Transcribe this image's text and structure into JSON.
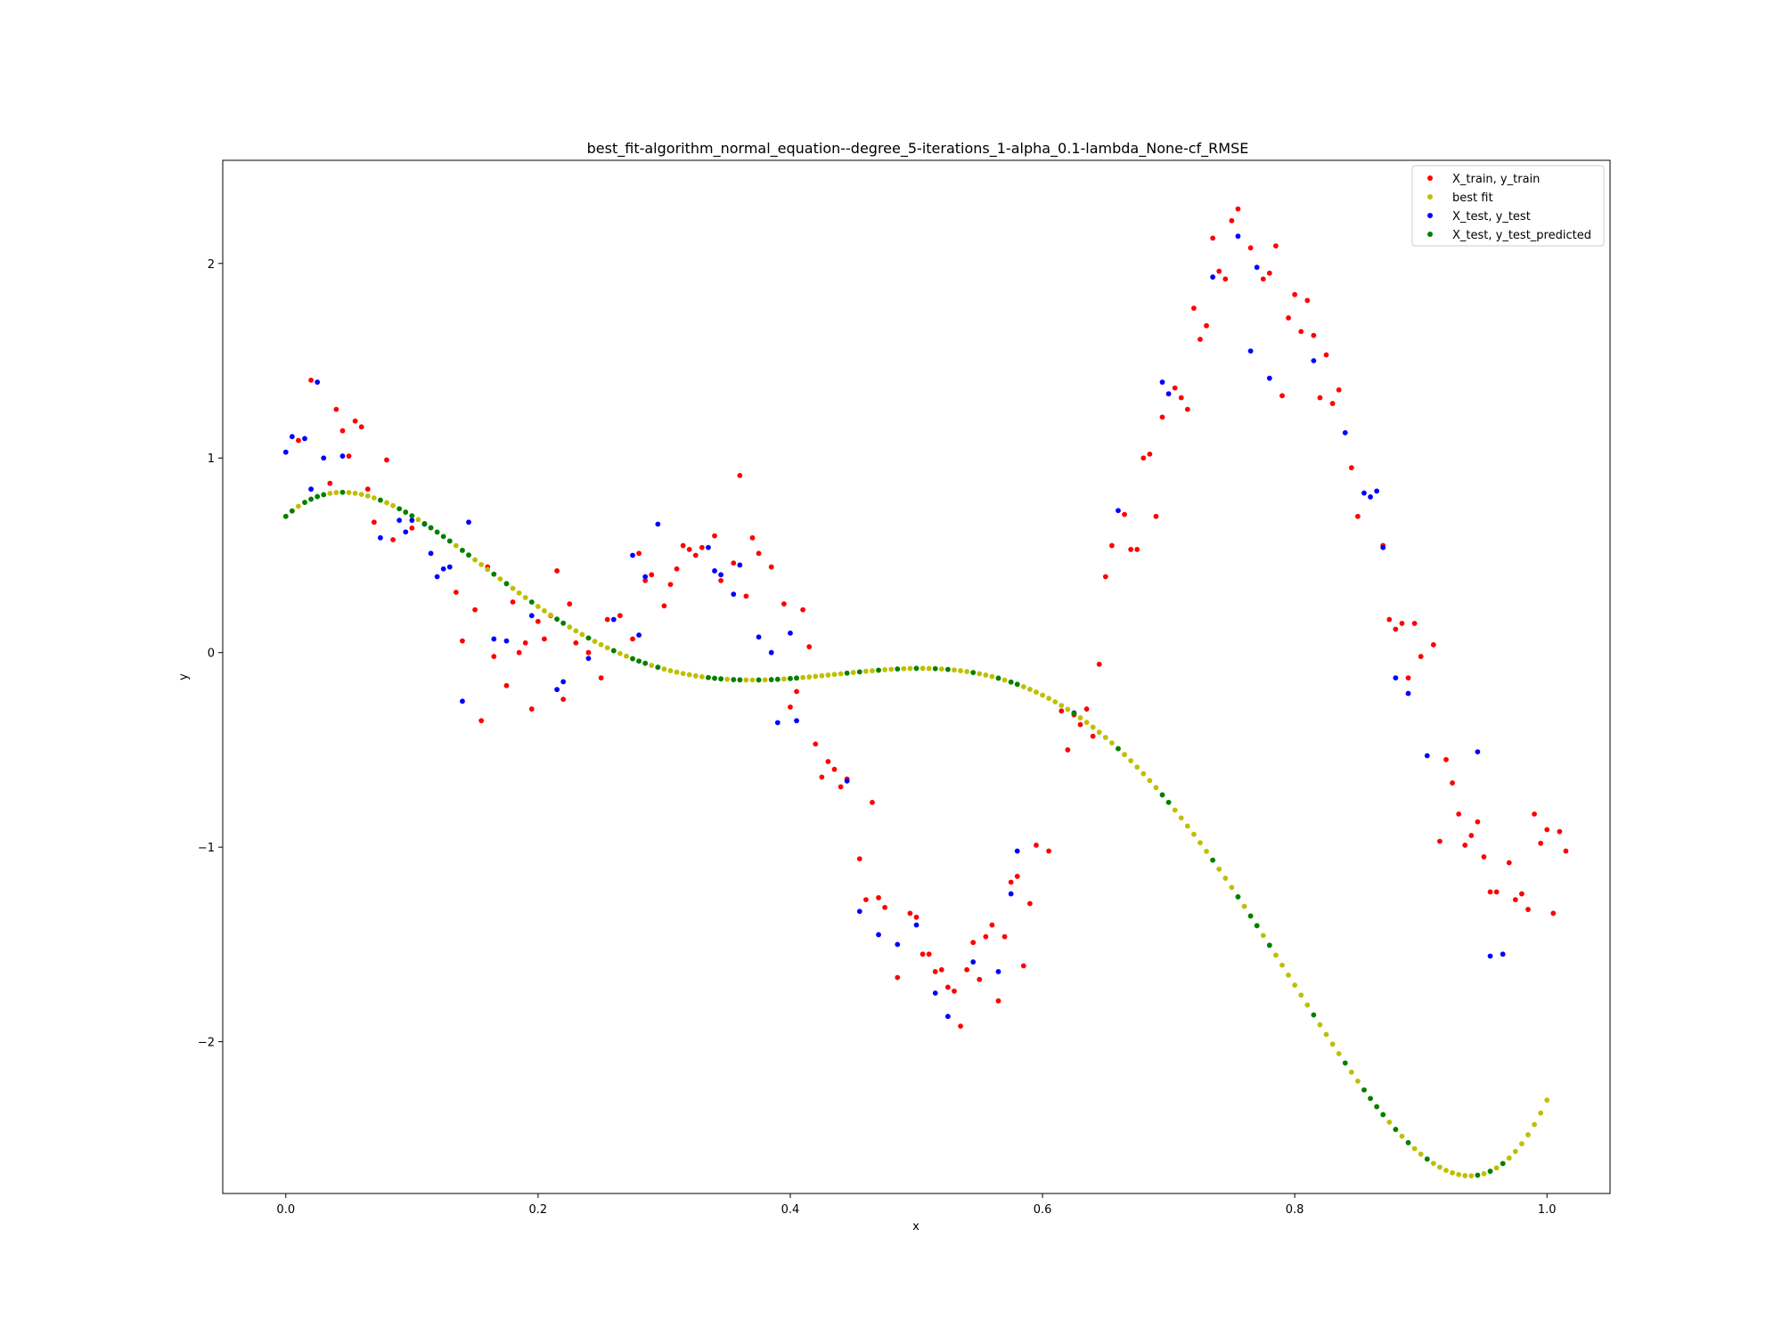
{
  "chart_data": {
    "type": "scatter",
    "title": "best_fit-algorithm_normal_equation--degree_5-iterations_1-alpha_0.1-lambda_None-cf_RMSE",
    "xlabel": "x",
    "ylabel": "y",
    "xlim": [
      -0.05,
      1.05
    ],
    "ylim": [
      -2.78,
      2.53
    ],
    "xticks": [
      0.0,
      0.2,
      0.4,
      0.6,
      0.8,
      1.0
    ],
    "xtick_labels": [
      "0.0",
      "0.2",
      "0.4",
      "0.6",
      "0.8",
      "1.0"
    ],
    "yticks": [
      -2,
      -1,
      0,
      1,
      2
    ],
    "ytick_labels": [
      "−2",
      "−1",
      "0",
      "1",
      "2"
    ],
    "grid": false,
    "legend_position": "top-right",
    "best_fit": {
      "degree": 5,
      "coefficients": [
        0.7,
        6.0,
        -84.0,
        277.0,
        -355.0,
        153.0
      ]
    },
    "series": [
      {
        "name": "X_train, y_train",
        "color": "#ff0000",
        "points": [
          [
            0.01,
            1.09
          ],
          [
            0.02,
            1.4
          ],
          [
            0.035,
            0.87
          ],
          [
            0.04,
            1.25
          ],
          [
            0.045,
            1.14
          ],
          [
            0.05,
            1.01
          ],
          [
            0.055,
            1.19
          ],
          [
            0.06,
            1.16
          ],
          [
            0.065,
            0.84
          ],
          [
            0.07,
            0.67
          ],
          [
            0.08,
            0.99
          ],
          [
            0.085,
            0.58
          ],
          [
            0.1,
            0.64
          ],
          [
            0.135,
            0.31
          ],
          [
            0.14,
            0.06
          ],
          [
            0.15,
            0.22
          ],
          [
            0.155,
            -0.35
          ],
          [
            0.16,
            0.44
          ],
          [
            0.165,
            -0.02
          ],
          [
            0.175,
            -0.17
          ],
          [
            0.18,
            0.26
          ],
          [
            0.185,
            0.0
          ],
          [
            0.19,
            0.05
          ],
          [
            0.195,
            -0.29
          ],
          [
            0.2,
            0.16
          ],
          [
            0.205,
            0.07
          ],
          [
            0.21,
            0.19
          ],
          [
            0.215,
            0.42
          ],
          [
            0.22,
            -0.24
          ],
          [
            0.225,
            0.25
          ],
          [
            0.23,
            0.05
          ],
          [
            0.24,
            0.0
          ],
          [
            0.25,
            -0.13
          ],
          [
            0.255,
            0.17
          ],
          [
            0.265,
            0.19
          ],
          [
            0.275,
            0.07
          ],
          [
            0.28,
            0.51
          ],
          [
            0.285,
            0.37
          ],
          [
            0.29,
            0.4
          ],
          [
            0.3,
            0.24
          ],
          [
            0.305,
            0.35
          ],
          [
            0.31,
            0.43
          ],
          [
            0.315,
            0.55
          ],
          [
            0.32,
            0.53
          ],
          [
            0.325,
            0.5
          ],
          [
            0.33,
            0.54
          ],
          [
            0.34,
            0.6
          ],
          [
            0.345,
            0.37
          ],
          [
            0.355,
            0.46
          ],
          [
            0.36,
            0.91
          ],
          [
            0.365,
            0.29
          ],
          [
            0.37,
            0.59
          ],
          [
            0.375,
            0.51
          ],
          [
            0.385,
            0.44
          ],
          [
            0.395,
            0.25
          ],
          [
            0.4,
            -0.28
          ],
          [
            0.405,
            -0.2
          ],
          [
            0.41,
            0.22
          ],
          [
            0.415,
            0.03
          ],
          [
            0.42,
            -0.47
          ],
          [
            0.425,
            -0.64
          ],
          [
            0.43,
            -0.56
          ],
          [
            0.435,
            -0.6
          ],
          [
            0.44,
            -0.69
          ],
          [
            0.445,
            -0.65
          ],
          [
            0.455,
            -1.06
          ],
          [
            0.46,
            -1.27
          ],
          [
            0.465,
            -0.77
          ],
          [
            0.47,
            -1.26
          ],
          [
            0.475,
            -1.31
          ],
          [
            0.485,
            -1.67
          ],
          [
            0.495,
            -1.34
          ],
          [
            0.5,
            -1.36
          ],
          [
            0.505,
            -1.55
          ],
          [
            0.51,
            -1.55
          ],
          [
            0.515,
            -1.64
          ],
          [
            0.52,
            -1.63
          ],
          [
            0.525,
            -1.72
          ],
          [
            0.53,
            -1.74
          ],
          [
            0.535,
            -1.92
          ],
          [
            0.54,
            -1.63
          ],
          [
            0.545,
            -1.49
          ],
          [
            0.55,
            -1.68
          ],
          [
            0.555,
            -1.46
          ],
          [
            0.56,
            -1.4
          ],
          [
            0.565,
            -1.79
          ],
          [
            0.57,
            -1.46
          ],
          [
            0.575,
            -1.18
          ],
          [
            0.58,
            -1.15
          ],
          [
            0.585,
            -1.61
          ],
          [
            0.59,
            -1.29
          ],
          [
            0.595,
            -0.99
          ],
          [
            0.605,
            -1.02
          ],
          [
            0.615,
            -0.3
          ],
          [
            0.62,
            -0.5
          ],
          [
            0.625,
            -0.32
          ],
          [
            0.63,
            -0.37
          ],
          [
            0.635,
            -0.29
          ],
          [
            0.64,
            -0.43
          ],
          [
            0.645,
            -0.06
          ],
          [
            0.65,
            0.39
          ],
          [
            0.655,
            0.55
          ],
          [
            0.665,
            0.71
          ],
          [
            0.67,
            0.53
          ],
          [
            0.675,
            0.53
          ],
          [
            0.68,
            1.0
          ],
          [
            0.685,
            1.02
          ],
          [
            0.69,
            0.7
          ],
          [
            0.695,
            1.21
          ],
          [
            0.705,
            1.36
          ],
          [
            0.71,
            1.31
          ],
          [
            0.715,
            1.25
          ],
          [
            0.72,
            1.77
          ],
          [
            0.725,
            1.61
          ],
          [
            0.73,
            1.68
          ],
          [
            0.735,
            2.13
          ],
          [
            0.74,
            1.96
          ],
          [
            0.745,
            1.92
          ],
          [
            0.75,
            2.22
          ],
          [
            0.755,
            2.28
          ],
          [
            0.765,
            2.08
          ],
          [
            0.775,
            1.92
          ],
          [
            0.78,
            1.95
          ],
          [
            0.785,
            2.09
          ],
          [
            0.79,
            1.32
          ],
          [
            0.795,
            1.72
          ],
          [
            0.8,
            1.84
          ],
          [
            0.805,
            1.65
          ],
          [
            0.81,
            1.81
          ],
          [
            0.815,
            1.63
          ],
          [
            0.82,
            1.31
          ],
          [
            0.825,
            1.53
          ],
          [
            0.83,
            1.28
          ],
          [
            0.835,
            1.35
          ],
          [
            0.845,
            0.95
          ],
          [
            0.85,
            0.7
          ],
          [
            0.87,
            0.55
          ],
          [
            0.875,
            0.17
          ],
          [
            0.88,
            0.12
          ],
          [
            0.885,
            0.15
          ],
          [
            0.89,
            -0.13
          ],
          [
            0.895,
            0.15
          ],
          [
            0.9,
            -0.02
          ],
          [
            0.91,
            0.04
          ],
          [
            0.915,
            -0.97
          ],
          [
            0.92,
            -0.55
          ],
          [
            0.925,
            -0.67
          ],
          [
            0.93,
            -0.83
          ],
          [
            0.935,
            -0.99
          ],
          [
            0.94,
            -0.94
          ],
          [
            0.945,
            -0.87
          ],
          [
            0.95,
            -1.05
          ],
          [
            0.955,
            -1.23
          ],
          [
            0.96,
            -1.23
          ],
          [
            0.97,
            -1.08
          ],
          [
            0.975,
            -1.27
          ],
          [
            0.98,
            -1.24
          ],
          [
            0.985,
            -1.32
          ],
          [
            0.99,
            -0.83
          ],
          [
            0.995,
            -0.98
          ],
          [
            1.0,
            -0.91
          ],
          [
            1.005,
            -1.34
          ],
          [
            1.01,
            -0.92
          ],
          [
            1.015,
            -1.02
          ]
        ]
      },
      {
        "name": "best fit",
        "color": "#bfbf00",
        "from_fit": true,
        "x_range": [
          0.0,
          1.0
        ],
        "count": 201
      },
      {
        "name": "X_test, y_test",
        "color": "#0000ff",
        "points": [
          [
            0.0,
            1.03
          ],
          [
            0.005,
            1.11
          ],
          [
            0.015,
            1.1
          ],
          [
            0.02,
            0.84
          ],
          [
            0.025,
            1.39
          ],
          [
            0.03,
            1.0
          ],
          [
            0.045,
            1.01
          ],
          [
            0.075,
            0.59
          ],
          [
            0.09,
            0.68
          ],
          [
            0.095,
            0.62
          ],
          [
            0.1,
            0.68
          ],
          [
            0.11,
            0.66
          ],
          [
            0.115,
            0.51
          ],
          [
            0.12,
            0.39
          ],
          [
            0.125,
            0.43
          ],
          [
            0.13,
            0.44
          ],
          [
            0.14,
            -0.25
          ],
          [
            0.145,
            0.67
          ],
          [
            0.165,
            0.07
          ],
          [
            0.175,
            0.06
          ],
          [
            0.195,
            0.19
          ],
          [
            0.215,
            -0.19
          ],
          [
            0.22,
            -0.15
          ],
          [
            0.24,
            -0.03
          ],
          [
            0.26,
            0.17
          ],
          [
            0.275,
            0.5
          ],
          [
            0.28,
            0.09
          ],
          [
            0.285,
            0.39
          ],
          [
            0.295,
            0.66
          ],
          [
            0.335,
            0.54
          ],
          [
            0.34,
            0.42
          ],
          [
            0.345,
            0.4
          ],
          [
            0.355,
            0.3
          ],
          [
            0.36,
            0.45
          ],
          [
            0.375,
            0.08
          ],
          [
            0.385,
            0.0
          ],
          [
            0.39,
            -0.36
          ],
          [
            0.4,
            0.1
          ],
          [
            0.405,
            -0.35
          ],
          [
            0.445,
            -0.66
          ],
          [
            0.455,
            -1.33
          ],
          [
            0.47,
            -1.45
          ],
          [
            0.485,
            -1.5
          ],
          [
            0.5,
            -1.4
          ],
          [
            0.515,
            -1.75
          ],
          [
            0.525,
            -1.87
          ],
          [
            0.545,
            -1.59
          ],
          [
            0.565,
            -1.64
          ],
          [
            0.575,
            -1.24
          ],
          [
            0.58,
            -1.02
          ],
          [
            0.625,
            -0.31
          ],
          [
            0.66,
            0.73
          ],
          [
            0.695,
            1.39
          ],
          [
            0.7,
            1.33
          ],
          [
            0.735,
            1.93
          ],
          [
            0.755,
            2.14
          ],
          [
            0.765,
            1.55
          ],
          [
            0.77,
            1.98
          ],
          [
            0.78,
            1.41
          ],
          [
            0.815,
            1.5
          ],
          [
            0.84,
            1.13
          ],
          [
            0.855,
            0.82
          ],
          [
            0.86,
            0.8
          ],
          [
            0.865,
            0.83
          ],
          [
            0.87,
            0.54
          ],
          [
            0.88,
            -0.13
          ],
          [
            0.89,
            -0.21
          ],
          [
            0.905,
            -0.53
          ],
          [
            0.945,
            -0.51
          ],
          [
            0.955,
            -1.56
          ],
          [
            0.965,
            -1.55
          ]
        ]
      },
      {
        "name": "X_test, y_test_predicted",
        "color": "#008000",
        "from_fit": true,
        "x": [
          0.0,
          0.005,
          0.015,
          0.02,
          0.025,
          0.03,
          0.045,
          0.075,
          0.09,
          0.095,
          0.1,
          0.11,
          0.115,
          0.12,
          0.125,
          0.13,
          0.14,
          0.145,
          0.165,
          0.175,
          0.195,
          0.215,
          0.22,
          0.24,
          0.26,
          0.275,
          0.28,
          0.285,
          0.295,
          0.335,
          0.34,
          0.345,
          0.355,
          0.36,
          0.375,
          0.385,
          0.39,
          0.4,
          0.405,
          0.445,
          0.455,
          0.47,
          0.485,
          0.5,
          0.515,
          0.525,
          0.545,
          0.565,
          0.575,
          0.58,
          0.625,
          0.66,
          0.695,
          0.7,
          0.735,
          0.755,
          0.765,
          0.77,
          0.78,
          0.815,
          0.84,
          0.855,
          0.86,
          0.865,
          0.87,
          0.88,
          0.89,
          0.905,
          0.945,
          0.955,
          0.965
        ]
      }
    ]
  }
}
